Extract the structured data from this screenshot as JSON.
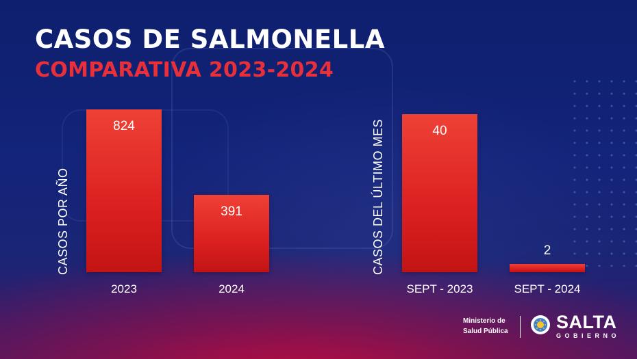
{
  "header": {
    "title": "CASOS DE SALMONELLA",
    "subtitle": "COMPARATIVA 2023-2024"
  },
  "chart_data": [
    {
      "type": "bar",
      "ylabel": "CASOS POR AÑO",
      "categories": [
        "2023",
        "2024"
      ],
      "values": [
        824,
        391
      ],
      "data_labels": [
        "824",
        "391"
      ],
      "ylim": [
        0,
        824
      ],
      "grid": false,
      "color": "#e02a2a"
    },
    {
      "type": "bar",
      "ylabel": "CASOS DEL ÚLTIMO MES",
      "categories": [
        "SEPT - 2023",
        "SEPT - 2024"
      ],
      "values": [
        40,
        2
      ],
      "data_labels": [
        "40",
        "2"
      ],
      "ylim": [
        0,
        40
      ],
      "grid": false,
      "color": "#e02a2a"
    }
  ],
  "footer": {
    "ministry_line1": "Ministerio de",
    "ministry_line2": "Salud Pública",
    "brand": "SALTA",
    "brand_sub": "GOBIERNO"
  },
  "colors": {
    "accent_red": "#e8303a",
    "bar_red": "#e02a2a",
    "background_blue": "#13247a"
  }
}
